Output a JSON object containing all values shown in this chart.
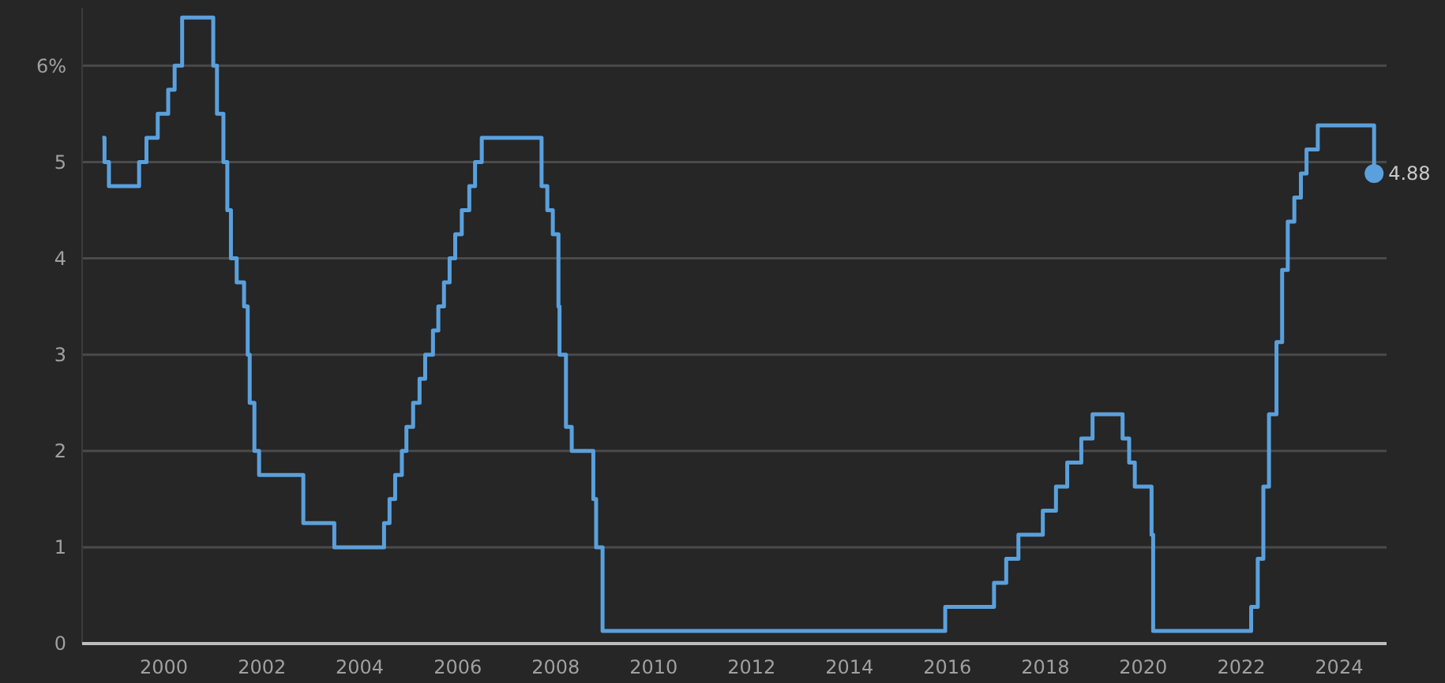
{
  "chart_data": {
    "type": "step",
    "xlim": [
      "1998-05-01",
      "2024-12-20"
    ],
    "xticks": [
      "2000",
      "2002",
      "2004",
      "2006",
      "2008",
      "2010",
      "2012",
      "2014",
      "2016",
      "2018",
      "2020",
      "2022",
      "2024"
    ],
    "ylim": [
      0,
      6.6
    ],
    "yticks": [
      0,
      1,
      2,
      3,
      4,
      5,
      {
        "value": 6,
        "label": "6%"
      }
    ],
    "grid": "y",
    "marker": "none",
    "line_style": "solid",
    "series": [
      {
        "color": "#5aa0dc",
        "x": [
          "1998-09-29",
          "1998-10-15",
          "1998-11-17",
          "1999-06-30",
          "1999-08-24",
          "1999-11-16",
          "2000-02-02",
          "2000-03-21",
          "2000-05-16",
          "2001-01-03",
          "2001-01-31",
          "2001-03-20",
          "2001-04-18",
          "2001-05-15",
          "2001-06-27",
          "2001-08-21",
          "2001-09-17",
          "2001-10-02",
          "2001-11-06",
          "2001-12-11",
          "2002-11-06",
          "2003-06-25",
          "2004-06-30",
          "2004-08-10",
          "2004-09-21",
          "2004-11-10",
          "2004-12-14",
          "2005-02-02",
          "2005-03-22",
          "2005-05-03",
          "2005-06-30",
          "2005-08-09",
          "2005-09-20",
          "2005-11-01",
          "2005-12-13",
          "2006-01-31",
          "2006-03-28",
          "2006-05-10",
          "2006-06-29",
          "2007-09-18",
          "2007-10-31",
          "2007-12-11",
          "2008-01-22",
          "2008-01-30",
          "2008-03-18",
          "2008-04-30",
          "2008-10-08",
          "2008-10-29",
          "2008-12-16",
          "2015-12-16",
          "2016-12-14",
          "2017-03-15",
          "2017-06-14",
          "2017-12-13",
          "2018-03-21",
          "2018-06-13",
          "2018-09-26",
          "2018-12-19",
          "2019-07-31",
          "2019-09-18",
          "2019-10-30",
          "2020-03-03",
          "2020-03-15",
          "2022-03-16",
          "2022-05-04",
          "2022-06-15",
          "2022-07-27",
          "2022-09-21",
          "2022-11-02",
          "2022-12-14",
          "2023-02-01",
          "2023-03-22",
          "2023-05-03",
          "2023-07-26",
          "2024-09-18"
        ],
        "values": [
          5.25,
          5.0,
          4.75,
          5.0,
          5.25,
          5.5,
          5.75,
          6.0,
          6.5,
          6.0,
          5.5,
          5.0,
          4.5,
          4.0,
          3.75,
          3.5,
          3.0,
          2.5,
          2.0,
          1.75,
          1.25,
          1.0,
          1.25,
          1.5,
          1.75,
          2.0,
          2.25,
          2.5,
          2.75,
          3.0,
          3.25,
          3.5,
          3.75,
          4.0,
          4.25,
          4.5,
          4.75,
          5.0,
          5.25,
          4.75,
          4.5,
          4.25,
          3.5,
          3.0,
          2.25,
          2.0,
          1.5,
          1.0,
          0.13,
          0.38,
          0.63,
          0.88,
          1.13,
          1.38,
          1.63,
          1.88,
          2.13,
          2.38,
          2.13,
          1.88,
          1.63,
          1.13,
          0.13,
          0.38,
          0.88,
          1.63,
          2.38,
          3.13,
          3.88,
          4.38,
          4.63,
          4.88,
          5.13,
          5.38,
          4.88
        ]
      },
      {
        "type": "scatter",
        "marker": "circle",
        "color": "#5aa0dc",
        "x": [
          "2024-09-18"
        ],
        "values": [
          4.88
        ],
        "value_labels": [
          "4.88"
        ]
      }
    ]
  }
}
